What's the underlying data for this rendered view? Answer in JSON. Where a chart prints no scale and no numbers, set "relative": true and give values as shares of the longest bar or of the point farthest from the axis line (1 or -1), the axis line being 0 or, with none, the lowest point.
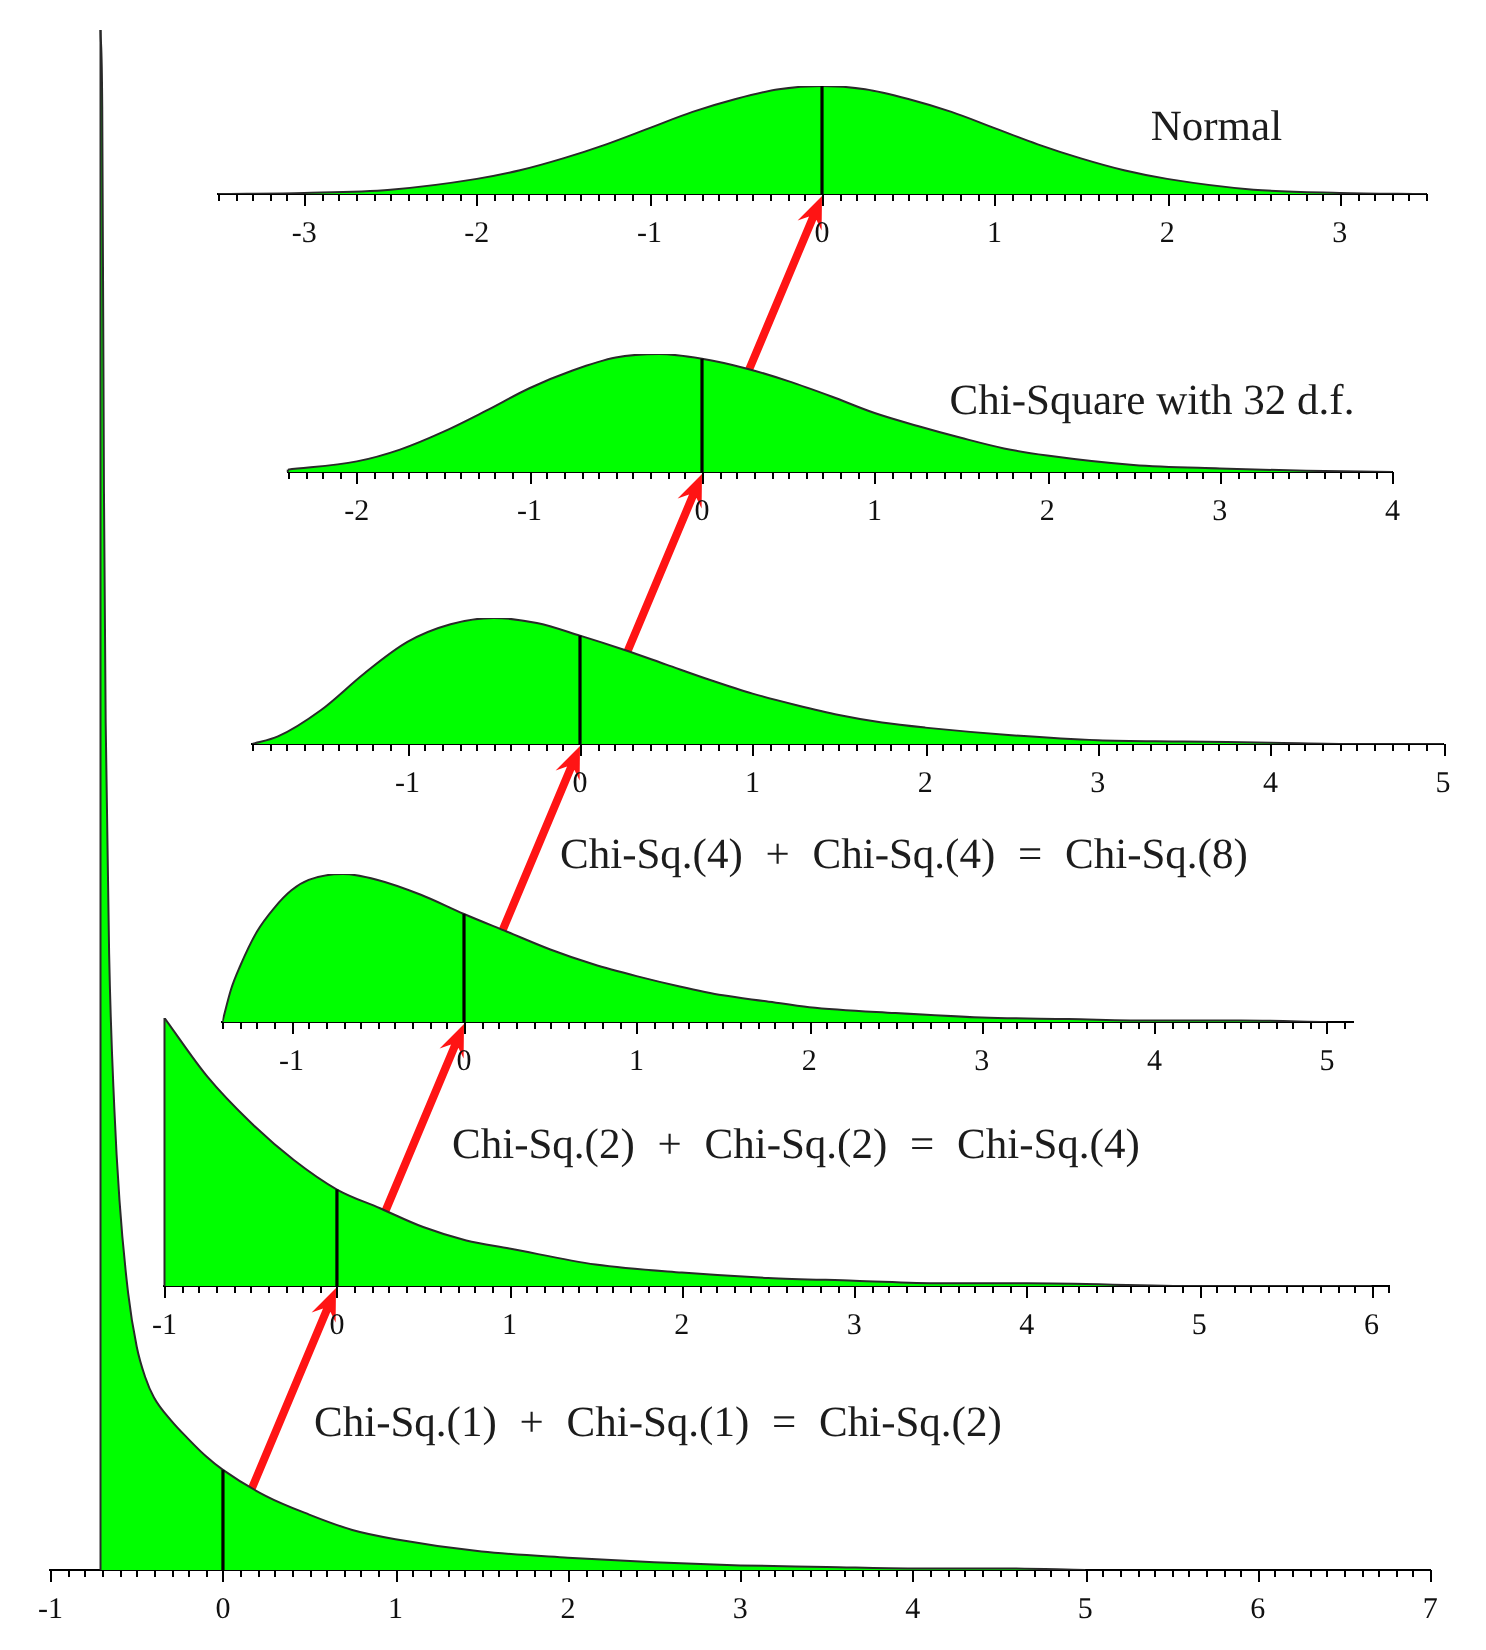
{
  "chart_data": [
    {
      "type": "area",
      "title": "Normal",
      "relative": true,
      "series": [
        {
          "color": "#00ff00",
          "x": [
            -3.5,
            -3,
            -2.5,
            -2,
            -1.75,
            -1.5,
            -1.25,
            -1,
            -0.75,
            -0.5,
            -0.25,
            0,
            0.25,
            0.5,
            0.75,
            1,
            1.25,
            1.5,
            1.75,
            2,
            2.5,
            3,
            3.5
          ],
          "values": [
            0,
            0.01,
            0.04,
            0.14,
            0.22,
            0.33,
            0.46,
            0.61,
            0.76,
            0.88,
            0.97,
            1,
            0.97,
            0.88,
            0.76,
            0.61,
            0.46,
            0.33,
            0.22,
            0.14,
            0.04,
            0.01,
            0
          ]
        }
      ],
      "ref_lines": [
        {
          "axis": "x",
          "value": 0
        }
      ],
      "xlim": [
        -3.5,
        3.5
      ],
      "xticks": [
        {
          "value": -3.5,
          "label": null
        },
        {
          "value": -3.4,
          "label": null
        },
        {
          "value": -3.3,
          "label": null
        },
        {
          "value": -3.2,
          "label": null
        },
        {
          "value": -3.1,
          "label": null
        },
        -3,
        {
          "value": -2.9,
          "label": null
        },
        {
          "value": -2.8,
          "label": null
        },
        {
          "value": -2.7,
          "label": null
        },
        {
          "value": -2.6,
          "label": null
        },
        {
          "value": -2.5,
          "label": null
        },
        {
          "value": -2.4,
          "label": null
        },
        {
          "value": -2.3,
          "label": null
        },
        {
          "value": -2.2,
          "label": null
        },
        {
          "value": -2.1,
          "label": null
        },
        -2,
        {
          "value": -1.9,
          "label": null
        },
        {
          "value": -1.8,
          "label": null
        },
        {
          "value": -1.7,
          "label": null
        },
        {
          "value": -1.6,
          "label": null
        },
        {
          "value": -1.5,
          "label": null
        },
        {
          "value": -1.4,
          "label": null
        },
        {
          "value": -1.3,
          "label": null
        },
        {
          "value": -1.2,
          "label": null
        },
        {
          "value": -1.1,
          "label": null
        },
        -1,
        {
          "value": -0.9,
          "label": null
        },
        {
          "value": -0.8,
          "label": null
        },
        {
          "value": -0.7,
          "label": null
        },
        {
          "value": -0.6,
          "label": null
        },
        {
          "value": -0.5,
          "label": null
        },
        {
          "value": -0.4,
          "label": null
        },
        {
          "value": -0.3,
          "label": null
        },
        {
          "value": -0.2,
          "label": null
        },
        {
          "value": -0.1,
          "label": null
        },
        0,
        {
          "value": 0.1,
          "label": null
        },
        {
          "value": 0.2,
          "label": null
        },
        {
          "value": 0.3,
          "label": null
        },
        {
          "value": 0.4,
          "label": null
        },
        {
          "value": 0.5,
          "label": null
        },
        {
          "value": 0.6,
          "label": null
        },
        {
          "value": 0.7,
          "label": null
        },
        {
          "value": 0.8,
          "label": null
        },
        {
          "value": 0.9,
          "label": null
        },
        1,
        {
          "value": 1.1,
          "label": null
        },
        {
          "value": 1.2,
          "label": null
        },
        {
          "value": 1.3,
          "label": null
        },
        {
          "value": 1.4,
          "label": null
        },
        {
          "value": 1.5,
          "label": null
        },
        {
          "value": 1.6,
          "label": null
        },
        {
          "value": 1.7,
          "label": null
        },
        {
          "value": 1.8,
          "label": null
        },
        {
          "value": 1.9,
          "label": null
        },
        2,
        {
          "value": 2.1,
          "label": null
        },
        {
          "value": 2.2,
          "label": null
        },
        {
          "value": 2.3,
          "label": null
        },
        {
          "value": 2.4,
          "label": null
        },
        {
          "value": 2.5,
          "label": null
        },
        {
          "value": 2.6,
          "label": null
        },
        {
          "value": 2.7,
          "label": null
        },
        {
          "value": 2.8,
          "label": null
        },
        {
          "value": 2.9,
          "label": null
        },
        3,
        {
          "value": 3.1,
          "label": null
        },
        {
          "value": 3.2,
          "label": null
        },
        {
          "value": 3.3,
          "label": null
        },
        {
          "value": 3.4,
          "label": null
        },
        {
          "value": 3.5,
          "label": null
        }
      ]
    },
    {
      "type": "area",
      "title": "Chi-Square with 32 d.f.",
      "relative": true,
      "series": [
        {
          "color": "#00ff00",
          "x": [
            -2.4,
            -2,
            -1.75,
            -1.5,
            -1.25,
            -1,
            -0.75,
            -0.5,
            -0.25,
            0,
            0.25,
            0.5,
            0.75,
            1,
            1.25,
            1.5,
            1.75,
            2,
            2.5,
            3,
            3.5,
            4
          ],
          "values": [
            0.02,
            0.09,
            0.19,
            0.34,
            0.52,
            0.71,
            0.86,
            0.97,
            1,
            0.96,
            0.88,
            0.77,
            0.64,
            0.5,
            0.39,
            0.29,
            0.2,
            0.14,
            0.06,
            0.03,
            0.01,
            0
          ]
        }
      ],
      "ref_lines": [
        {
          "axis": "x",
          "value": 0
        }
      ],
      "xlim": [
        -2.4,
        4
      ],
      "xticks": [
        {
          "value": -2.4,
          "label": null
        },
        {
          "value": -2.3,
          "label": null
        },
        {
          "value": -2.2,
          "label": null
        },
        {
          "value": -2.1,
          "label": null
        },
        -2,
        {
          "value": -1.9,
          "label": null
        },
        {
          "value": -1.8,
          "label": null
        },
        {
          "value": -1.7,
          "label": null
        },
        {
          "value": -1.6,
          "label": null
        },
        {
          "value": -1.5,
          "label": null
        },
        {
          "value": -1.4,
          "label": null
        },
        {
          "value": -1.3,
          "label": null
        },
        {
          "value": -1.2,
          "label": null
        },
        {
          "value": -1.1,
          "label": null
        },
        -1,
        {
          "value": -0.9,
          "label": null
        },
        {
          "value": -0.8,
          "label": null
        },
        {
          "value": -0.7,
          "label": null
        },
        {
          "value": -0.6,
          "label": null
        },
        {
          "value": -0.5,
          "label": null
        },
        {
          "value": -0.4,
          "label": null
        },
        {
          "value": -0.3,
          "label": null
        },
        {
          "value": -0.2,
          "label": null
        },
        {
          "value": -0.1,
          "label": null
        },
        0,
        {
          "value": 0.1,
          "label": null
        },
        {
          "value": 0.2,
          "label": null
        },
        {
          "value": 0.3,
          "label": null
        },
        {
          "value": 0.4,
          "label": null
        },
        {
          "value": 0.5,
          "label": null
        },
        {
          "value": 0.6,
          "label": null
        },
        {
          "value": 0.7,
          "label": null
        },
        {
          "value": 0.8,
          "label": null
        },
        {
          "value": 0.9,
          "label": null
        },
        1,
        {
          "value": 1.1,
          "label": null
        },
        {
          "value": 1.2,
          "label": null
        },
        {
          "value": 1.3,
          "label": null
        },
        {
          "value": 1.4,
          "label": null
        },
        {
          "value": 1.5,
          "label": null
        },
        {
          "value": 1.6,
          "label": null
        },
        {
          "value": 1.7,
          "label": null
        },
        {
          "value": 1.8,
          "label": null
        },
        {
          "value": 1.9,
          "label": null
        },
        2,
        {
          "value": 2.1,
          "label": null
        },
        {
          "value": 2.2,
          "label": null
        },
        {
          "value": 2.3,
          "label": null
        },
        {
          "value": 2.4,
          "label": null
        },
        {
          "value": 2.5,
          "label": null
        },
        {
          "value": 2.6,
          "label": null
        },
        {
          "value": 2.7,
          "label": null
        },
        {
          "value": 2.8,
          "label": null
        },
        {
          "value": 2.9,
          "label": null
        },
        3,
        {
          "value": 3.1,
          "label": null
        },
        {
          "value": 3.2,
          "label": null
        },
        {
          "value": 3.3,
          "label": null
        },
        {
          "value": 3.4,
          "label": null
        },
        {
          "value": 3.5,
          "label": null
        },
        {
          "value": 3.6,
          "label": null
        },
        {
          "value": 3.7,
          "label": null
        },
        {
          "value": 3.8,
          "label": null
        },
        {
          "value": 3.9,
          "label": null
        },
        4
      ]
    },
    {
      "type": "area",
      "title": "Chi-Sq.(4) + Chi-Sq.(4) = Chi-Sq.(8)",
      "relative": true,
      "series": [
        {
          "color": "#00ff00",
          "x": [
            -1.9,
            -1.75,
            -1.5,
            -1.25,
            -1,
            -0.75,
            -0.5,
            -0.25,
            0,
            0.25,
            0.5,
            0.75,
            1,
            1.25,
            1.5,
            1.75,
            2,
            2.5,
            3,
            3.5,
            4,
            4.5,
            5
          ],
          "values": [
            0,
            0.06,
            0.27,
            0.56,
            0.81,
            0.95,
            1,
            0.96,
            0.86,
            0.75,
            0.63,
            0.51,
            0.4,
            0.31,
            0.23,
            0.17,
            0.13,
            0.07,
            0.03,
            0.02,
            0.01,
            0,
            0
          ]
        }
      ],
      "ref_lines": [
        {
          "axis": "x",
          "value": 0
        }
      ],
      "xlim": [
        -1.9,
        5
      ],
      "xticks": [
        {
          "value": -1.9,
          "label": null
        },
        {
          "value": -1.8,
          "label": null
        },
        {
          "value": -1.7,
          "label": null
        },
        {
          "value": -1.6,
          "label": null
        },
        {
          "value": -1.5,
          "label": null
        },
        {
          "value": -1.4,
          "label": null
        },
        {
          "value": -1.3,
          "label": null
        },
        {
          "value": -1.2,
          "label": null
        },
        {
          "value": -1.1,
          "label": null
        },
        -1,
        {
          "value": -0.9,
          "label": null
        },
        {
          "value": -0.8,
          "label": null
        },
        {
          "value": -0.7,
          "label": null
        },
        {
          "value": -0.6,
          "label": null
        },
        {
          "value": -0.5,
          "label": null
        },
        {
          "value": -0.4,
          "label": null
        },
        {
          "value": -0.3,
          "label": null
        },
        {
          "value": -0.2,
          "label": null
        },
        {
          "value": -0.1,
          "label": null
        },
        0,
        {
          "value": 0.1,
          "label": null
        },
        {
          "value": 0.2,
          "label": null
        },
        {
          "value": 0.3,
          "label": null
        },
        {
          "value": 0.4,
          "label": null
        },
        {
          "value": 0.5,
          "label": null
        },
        {
          "value": 0.6,
          "label": null
        },
        {
          "value": 0.7,
          "label": null
        },
        {
          "value": 0.8,
          "label": null
        },
        {
          "value": 0.9,
          "label": null
        },
        1,
        {
          "value": 1.1,
          "label": null
        },
        {
          "value": 1.2,
          "label": null
        },
        {
          "value": 1.3,
          "label": null
        },
        {
          "value": 1.4,
          "label": null
        },
        {
          "value": 1.5,
          "label": null
        },
        {
          "value": 1.6,
          "label": null
        },
        {
          "value": 1.7,
          "label": null
        },
        {
          "value": 1.8,
          "label": null
        },
        {
          "value": 1.9,
          "label": null
        },
        2,
        {
          "value": 2.1,
          "label": null
        },
        {
          "value": 2.2,
          "label": null
        },
        {
          "value": 2.3,
          "label": null
        },
        {
          "value": 2.4,
          "label": null
        },
        {
          "value": 2.5,
          "label": null
        },
        {
          "value": 2.6,
          "label": null
        },
        {
          "value": 2.7,
          "label": null
        },
        {
          "value": 2.8,
          "label": null
        },
        {
          "value": 2.9,
          "label": null
        },
        3,
        {
          "value": 3.1,
          "label": null
        },
        {
          "value": 3.2,
          "label": null
        },
        {
          "value": 3.3,
          "label": null
        },
        {
          "value": 3.4,
          "label": null
        },
        {
          "value": 3.5,
          "label": null
        },
        {
          "value": 3.6,
          "label": null
        },
        {
          "value": 3.7,
          "label": null
        },
        {
          "value": 3.8,
          "label": null
        },
        {
          "value": 3.9,
          "label": null
        },
        4,
        {
          "value": 4.1,
          "label": null
        },
        {
          "value": 4.2,
          "label": null
        },
        {
          "value": 4.3,
          "label": null
        },
        {
          "value": 4.4,
          "label": null
        },
        {
          "value": 4.5,
          "label": null
        },
        {
          "value": 4.6,
          "label": null
        },
        {
          "value": 4.7,
          "label": null
        },
        {
          "value": 4.8,
          "label": null
        },
        {
          "value": 4.9,
          "label": null
        },
        5
      ]
    },
    {
      "type": "area",
      "title": "Chi-Sq.(2) + Chi-Sq.(2) = Chi-Sq.(4)",
      "relative": true,
      "series": [
        {
          "color": "#00ff00",
          "x": [
            -1.4,
            -1.35,
            -1.3,
            -1.2,
            -1.1,
            -1,
            -0.9,
            -0.7,
            -0.5,
            -0.25,
            0,
            0.25,
            0.5,
            0.75,
            1,
            1.25,
            1.5,
            1.75,
            2,
            2.5,
            3,
            3.5,
            4,
            4.5,
            5
          ],
          "values": [
            0,
            0.22,
            0.37,
            0.61,
            0.77,
            0.89,
            0.96,
            1,
            0.96,
            0.86,
            0.73,
            0.61,
            0.49,
            0.39,
            0.31,
            0.24,
            0.18,
            0.14,
            0.1,
            0.06,
            0.03,
            0.02,
            0.01,
            0.01,
            0
          ]
        }
      ],
      "ref_lines": [
        {
          "axis": "x",
          "value": 0
        }
      ],
      "xlim": [
        -1.4,
        5.15
      ],
      "xticks": [
        {
          "value": -1.4,
          "label": null
        },
        {
          "value": -1.3,
          "label": null
        },
        {
          "value": -1.2,
          "label": null
        },
        {
          "value": -1.1,
          "label": null
        },
        -1,
        {
          "value": -0.9,
          "label": null
        },
        {
          "value": -0.8,
          "label": null
        },
        {
          "value": -0.7,
          "label": null
        },
        {
          "value": -0.6,
          "label": null
        },
        {
          "value": -0.5,
          "label": null
        },
        {
          "value": -0.4,
          "label": null
        },
        {
          "value": -0.3,
          "label": null
        },
        {
          "value": -0.2,
          "label": null
        },
        {
          "value": -0.1,
          "label": null
        },
        0,
        {
          "value": 0.1,
          "label": null
        },
        {
          "value": 0.2,
          "label": null
        },
        {
          "value": 0.3,
          "label": null
        },
        {
          "value": 0.4,
          "label": null
        },
        {
          "value": 0.5,
          "label": null
        },
        {
          "value": 0.6,
          "label": null
        },
        {
          "value": 0.7,
          "label": null
        },
        {
          "value": 0.8,
          "label": null
        },
        {
          "value": 0.9,
          "label": null
        },
        1,
        {
          "value": 1.1,
          "label": null
        },
        {
          "value": 1.2,
          "label": null
        },
        {
          "value": 1.3,
          "label": null
        },
        {
          "value": 1.4,
          "label": null
        },
        {
          "value": 1.5,
          "label": null
        },
        {
          "value": 1.6,
          "label": null
        },
        {
          "value": 1.7,
          "label": null
        },
        {
          "value": 1.8,
          "label": null
        },
        {
          "value": 1.9,
          "label": null
        },
        2,
        {
          "value": 2.1,
          "label": null
        },
        {
          "value": 2.2,
          "label": null
        },
        {
          "value": 2.3,
          "label": null
        },
        {
          "value": 2.4,
          "label": null
        },
        {
          "value": 2.5,
          "label": null
        },
        {
          "value": 2.6,
          "label": null
        },
        {
          "value": 2.7,
          "label": null
        },
        {
          "value": 2.8,
          "label": null
        },
        {
          "value": 2.9,
          "label": null
        },
        3,
        {
          "value": 3.1,
          "label": null
        },
        {
          "value": 3.2,
          "label": null
        },
        {
          "value": 3.3,
          "label": null
        },
        {
          "value": 3.4,
          "label": null
        },
        {
          "value": 3.5,
          "label": null
        },
        {
          "value": 3.6,
          "label": null
        },
        {
          "value": 3.7,
          "label": null
        },
        {
          "value": 3.8,
          "label": null
        },
        {
          "value": 3.9,
          "label": null
        },
        4,
        {
          "value": 4.1,
          "label": null
        },
        {
          "value": 4.2,
          "label": null
        },
        {
          "value": 4.3,
          "label": null
        },
        {
          "value": 4.4,
          "label": null
        },
        {
          "value": 4.5,
          "label": null
        },
        {
          "value": 4.6,
          "label": null
        },
        {
          "value": 4.7,
          "label": null
        },
        {
          "value": 4.8,
          "label": null
        },
        {
          "value": 4.9,
          "label": null
        },
        5,
        {
          "value": 5.1,
          "label": null
        }
      ]
    },
    {
      "type": "area",
      "title": "Chi-Sq.(1) + Chi-Sq.(1) = Chi-Sq.(2)",
      "relative": true,
      "series": [
        {
          "color": "#00ff00",
          "x": [
            -1,
            -0.75,
            -0.5,
            -0.25,
            0,
            0.25,
            0.5,
            0.75,
            1,
            1.5,
            2,
            2.5,
            3,
            3.5,
            4,
            5,
            6
          ],
          "values": [
            1,
            0.78,
            0.61,
            0.47,
            0.36,
            0.29,
            0.22,
            0.17,
            0.14,
            0.08,
            0.05,
            0.03,
            0.02,
            0.01,
            0.01,
            0,
            0
          ]
        },
        {
          "type": "line",
          "color": "#000000",
          "x": [
            0,
            0
          ],
          "values": [
            0,
            0.36
          ]
        }
      ],
      "xlim": [
        -1,
        6.1
      ],
      "xticks": [
        -1,
        {
          "value": -0.9,
          "label": null
        },
        {
          "value": -0.8,
          "label": null
        },
        {
          "value": -0.7,
          "label": null
        },
        {
          "value": -0.6,
          "label": null
        },
        {
          "value": -0.5,
          "label": null
        },
        {
          "value": -0.4,
          "label": null
        },
        {
          "value": -0.3,
          "label": null
        },
        {
          "value": -0.2,
          "label": null
        },
        {
          "value": -0.1,
          "label": null
        },
        0,
        {
          "value": 0.1,
          "label": null
        },
        {
          "value": 0.2,
          "label": null
        },
        {
          "value": 0.3,
          "label": null
        },
        {
          "value": 0.4,
          "label": null
        },
        {
          "value": 0.5,
          "label": null
        },
        {
          "value": 0.6,
          "label": null
        },
        {
          "value": 0.7,
          "label": null
        },
        {
          "value": 0.8,
          "label": null
        },
        {
          "value": 0.9,
          "label": null
        },
        1,
        {
          "value": 1.1,
          "label": null
        },
        {
          "value": 1.2,
          "label": null
        },
        {
          "value": 1.3,
          "label": null
        },
        {
          "value": 1.4,
          "label": null
        },
        {
          "value": 1.5,
          "label": null
        },
        {
          "value": 1.6,
          "label": null
        },
        {
          "value": 1.7,
          "label": null
        },
        {
          "value": 1.8,
          "label": null
        },
        {
          "value": 1.9,
          "label": null
        },
        2,
        {
          "value": 2.1,
          "label": null
        },
        {
          "value": 2.2,
          "label": null
        },
        {
          "value": 2.3,
          "label": null
        },
        {
          "value": 2.4,
          "label": null
        },
        {
          "value": 2.5,
          "label": null
        },
        {
          "value": 2.6,
          "label": null
        },
        {
          "value": 2.7,
          "label": null
        },
        {
          "value": 2.8,
          "label": null
        },
        {
          "value": 2.9,
          "label": null
        },
        3,
        {
          "value": 3.1,
          "label": null
        },
        {
          "value": 3.2,
          "label": null
        },
        {
          "value": 3.3,
          "label": null
        },
        {
          "value": 3.4,
          "label": null
        },
        {
          "value": 3.5,
          "label": null
        },
        {
          "value": 3.6,
          "label": null
        },
        {
          "value": 3.7,
          "label": null
        },
        {
          "value": 3.8,
          "label": null
        },
        {
          "value": 3.9,
          "label": null
        },
        4,
        {
          "value": 4.1,
          "label": null
        },
        {
          "value": 4.2,
          "label": null
        },
        {
          "value": 4.3,
          "label": null
        },
        {
          "value": 4.4,
          "label": null
        },
        {
          "value": 4.5,
          "label": null
        },
        {
          "value": 4.6,
          "label": null
        },
        {
          "value": 4.7,
          "label": null
        },
        {
          "value": 4.8,
          "label": null
        },
        {
          "value": 4.9,
          "label": null
        },
        5,
        {
          "value": 5.1,
          "label": null
        },
        {
          "value": 5.2,
          "label": null
        },
        {
          "value": 5.3,
          "label": null
        },
        {
          "value": 5.4,
          "label": null
        },
        {
          "value": 5.5,
          "label": null
        },
        {
          "value": 5.6,
          "label": null
        },
        {
          "value": 5.7,
          "label": null
        },
        {
          "value": 5.8,
          "label": null
        },
        {
          "value": 5.9,
          "label": null
        },
        6,
        {
          "value": 6.1,
          "label": null
        }
      ]
    },
    {
      "type": "area",
      "relative": true,
      "series": [
        {
          "color": "#00ff00",
          "x": [
            -0.71,
            -0.7,
            -0.69,
            -0.68,
            -0.66,
            -0.63,
            -0.6,
            -0.55,
            -0.5,
            -0.45,
            -0.4,
            -0.3,
            -0.2,
            -0.1,
            0,
            0.25,
            0.5,
            0.75,
            1,
            1.5,
            2,
            2.5,
            3,
            3.5,
            4,
            4.5,
            5
          ],
          "values": [
            1,
            0.95,
            0.7,
            0.55,
            0.4,
            0.3,
            0.24,
            0.18,
            0.145,
            0.125,
            0.112,
            0.097,
            0.085,
            0.074,
            0.065,
            0.048,
            0.036,
            0.026,
            0.02,
            0.012,
            0.008,
            0.005,
            0.003,
            0.002,
            0.001,
            0.001,
            0
          ]
        },
        {
          "type": "line",
          "color": "#000000",
          "x": [
            0,
            0
          ],
          "values": [
            0,
            0.065
          ]
        }
      ],
      "xlim": [
        -1,
        7
      ],
      "xticks": [
        -1,
        {
          "value": -0.9,
          "label": null
        },
        {
          "value": -0.8,
          "label": null
        },
        {
          "value": -0.7,
          "label": null
        },
        {
          "value": -0.6,
          "label": null
        },
        {
          "value": -0.5,
          "label": null
        },
        {
          "value": -0.4,
          "label": null
        },
        {
          "value": -0.3,
          "label": null
        },
        {
          "value": -0.2,
          "label": null
        },
        {
          "value": -0.1,
          "label": null
        },
        0,
        {
          "value": 0.1,
          "label": null
        },
        {
          "value": 0.2,
          "label": null
        },
        {
          "value": 0.3,
          "label": null
        },
        {
          "value": 0.4,
          "label": null
        },
        {
          "value": 0.5,
          "label": null
        },
        {
          "value": 0.6,
          "label": null
        },
        {
          "value": 0.7,
          "label": null
        },
        {
          "value": 0.8,
          "label": null
        },
        {
          "value": 0.9,
          "label": null
        },
        1,
        {
          "value": 1.1,
          "label": null
        },
        {
          "value": 1.2,
          "label": null
        },
        {
          "value": 1.3,
          "label": null
        },
        {
          "value": 1.4,
          "label": null
        },
        {
          "value": 1.5,
          "label": null
        },
        {
          "value": 1.6,
          "label": null
        },
        {
          "value": 1.7,
          "label": null
        },
        {
          "value": 1.8,
          "label": null
        },
        {
          "value": 1.9,
          "label": null
        },
        2,
        {
          "value": 2.1,
          "label": null
        },
        {
          "value": 2.2,
          "label": null
        },
        {
          "value": 2.3,
          "label": null
        },
        {
          "value": 2.4,
          "label": null
        },
        {
          "value": 2.5,
          "label": null
        },
        {
          "value": 2.6,
          "label": null
        },
        {
          "value": 2.7,
          "label": null
        },
        {
          "value": 2.8,
          "label": null
        },
        {
          "value": 2.9,
          "label": null
        },
        3,
        {
          "value": 3.1,
          "label": null
        },
        {
          "value": 3.2,
          "label": null
        },
        {
          "value": 3.3,
          "label": null
        },
        {
          "value": 3.4,
          "label": null
        },
        {
          "value": 3.5,
          "label": null
        },
        {
          "value": 3.6,
          "label": null
        },
        {
          "value": 3.7,
          "label": null
        },
        {
          "value": 3.8,
          "label": null
        },
        {
          "value": 3.9,
          "label": null
        },
        4,
        {
          "value": 4.1,
          "label": null
        },
        {
          "value": 4.2,
          "label": null
        },
        {
          "value": 4.3,
          "label": null
        },
        {
          "value": 4.4,
          "label": null
        },
        {
          "value": 4.5,
          "label": null
        },
        {
          "value": 4.6,
          "label": null
        },
        {
          "value": 4.7,
          "label": null
        },
        {
          "value": 4.8,
          "label": null
        },
        {
          "value": 4.9,
          "label": null
        },
        5,
        {
          "value": 5.1,
          "label": null
        },
        {
          "value": 5.2,
          "label": null
        },
        {
          "value": 5.3,
          "label": null
        },
        {
          "value": 5.4,
          "label": null
        },
        {
          "value": 5.5,
          "label": null
        },
        {
          "value": 5.6,
          "label": null
        },
        {
          "value": 5.7,
          "label": null
        },
        {
          "value": 5.8,
          "label": null
        },
        {
          "value": 5.9,
          "label": null
        },
        6,
        {
          "value": 6.1,
          "label": null
        },
        {
          "value": 6.2,
          "label": null
        },
        {
          "value": 6.3,
          "label": null
        },
        {
          "value": 6.4,
          "label": null
        },
        {
          "value": 6.5,
          "label": null
        },
        {
          "value": 6.6,
          "label": null
        },
        {
          "value": 6.7,
          "label": null
        },
        {
          "value": 6.8,
          "label": null
        },
        {
          "value": 6.9,
          "label": null
        },
        7
      ]
    }
  ]
}
